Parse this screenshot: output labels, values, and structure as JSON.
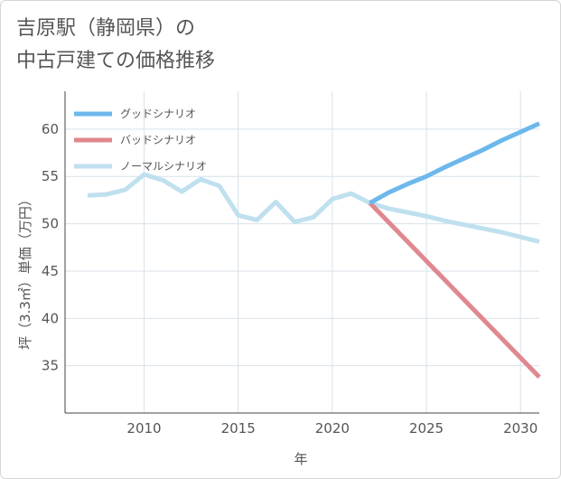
{
  "title": {
    "line1": "吉原駅（静岡県）の",
    "line2": "中古戸建ての価格推移"
  },
  "colors": {
    "good": "#6cb8ec",
    "bad": "#e0888f",
    "normal": "#bfe0ee",
    "grid": "#d8e2ea",
    "axis": "#555555"
  },
  "chart_data": {
    "type": "line",
    "title": "吉原駅（静岡県）の中古戸建ての価格推移",
    "xlabel": "年",
    "ylabel": "坪（3.3㎡）単価（万円）",
    "xlim": [
      2005.8,
      2031
    ],
    "ylim": [
      30,
      64
    ],
    "xticks": [
      2010,
      2015,
      2020,
      2025,
      2030
    ],
    "yticks": [
      35,
      40,
      45,
      50,
      55,
      60
    ],
    "grid": true,
    "legend_position": "top-left",
    "series": [
      {
        "name": "グッドシナリオ",
        "key": "good",
        "x": [
          2022,
          2023,
          2024,
          2025,
          2026,
          2027,
          2028,
          2029,
          2030,
          2031
        ],
        "values": [
          52.2,
          53.3,
          54.2,
          55.0,
          56.0,
          56.9,
          57.8,
          58.8,
          59.7,
          60.6
        ]
      },
      {
        "name": "バッドシナリオ",
        "key": "bad",
        "x": [
          2022,
          2031
        ],
        "values": [
          52.2,
          33.8
        ]
      },
      {
        "name": "ノーマルシナリオ",
        "key": "normal",
        "x": [
          2007,
          2008,
          2009,
          2010,
          2011,
          2012,
          2013,
          2014,
          2015,
          2016,
          2017,
          2018,
          2019,
          2020,
          2021,
          2022,
          2023,
          2024,
          2025,
          2026,
          2027,
          2028,
          2029,
          2030,
          2031
        ],
        "values": [
          53.0,
          53.1,
          53.6,
          55.2,
          54.6,
          53.4,
          54.7,
          54.0,
          50.9,
          50.4,
          52.3,
          50.2,
          50.7,
          52.6,
          53.2,
          52.2,
          51.6,
          51.2,
          50.8,
          50.3,
          49.9,
          49.5,
          49.1,
          48.6,
          48.1
        ]
      }
    ]
  }
}
